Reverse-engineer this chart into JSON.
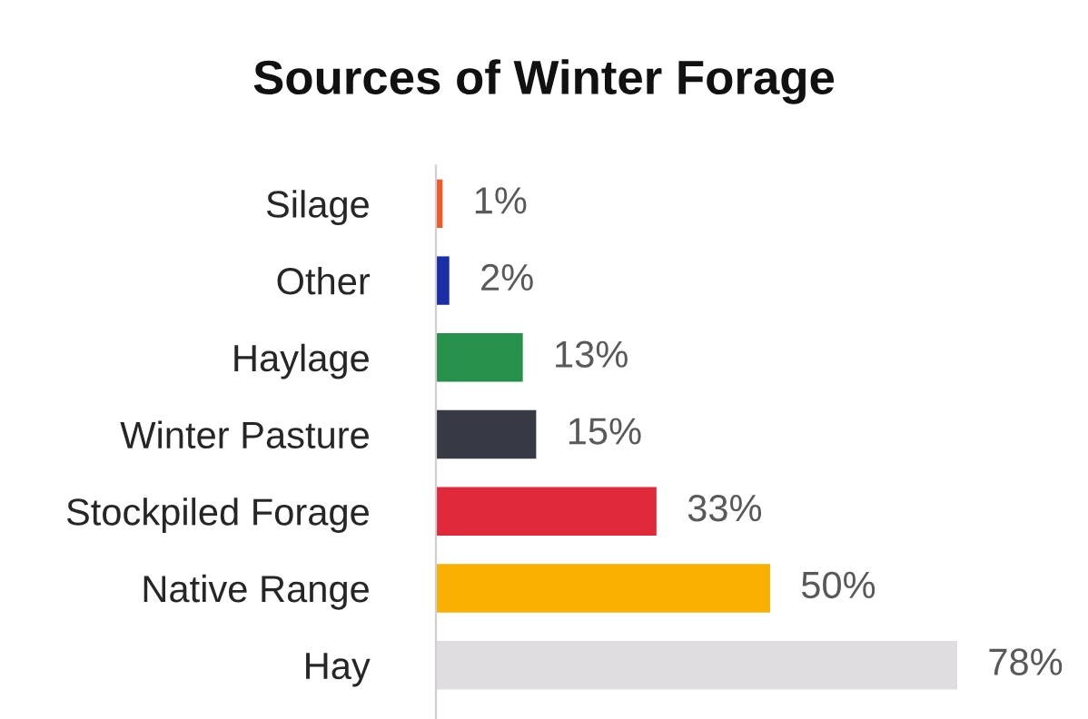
{
  "chart_data": {
    "type": "bar",
    "orientation": "horizontal",
    "title": "Sources of Winter Forage",
    "categories": [
      "Silage",
      "Other",
      "Haylage",
      "Winter Pasture",
      "Stockpiled Forage",
      "Native Range",
      "Hay"
    ],
    "values": [
      1,
      2,
      13,
      15,
      33,
      50,
      78
    ],
    "colors": [
      "#f05a28",
      "#1a2ea8",
      "#25914b",
      "#363a45",
      "#e02a3c",
      "#f9b000",
      "#e0dde0"
    ],
    "value_labels": [
      "1%",
      "2%",
      "13%",
      "15%",
      "33%",
      "50%",
      "78%"
    ],
    "grid": false,
    "legend": false
  }
}
